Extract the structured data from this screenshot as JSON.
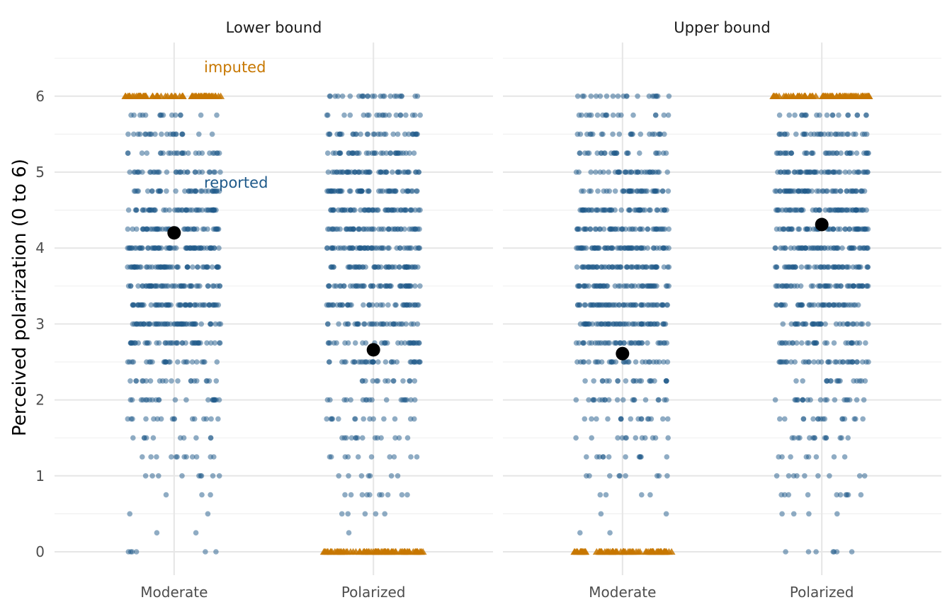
{
  "chart_data": {
    "type": "scatter",
    "ylabel": "Perceived polarization (0 to 6)",
    "xlabel": "",
    "ylim": [
      -0.3,
      6.55
    ],
    "y_ticks": [
      0,
      1,
      2,
      3,
      4,
      5,
      6
    ],
    "categories": [
      "Moderate",
      "Polarized"
    ],
    "grid": true,
    "legend": "none",
    "colors": {
      "reported": "#1f5a8a",
      "imputed": "#c77700",
      "mean": "#000000"
    },
    "annotations": [
      {
        "text": "imputed",
        "panel": 0,
        "x": 1.15,
        "y": 6.38,
        "color": "#c77700"
      },
      {
        "text": "reported",
        "panel": 0,
        "x": 1.15,
        "y": 4.86,
        "color": "#1f5a8a"
      }
    ],
    "panels": [
      {
        "title": "Lower bound",
        "groups": [
          {
            "category": "Moderate",
            "mean": 4.2,
            "imputed_at": 6,
            "imputed_count": 70,
            "reported_counts": {
              "0": 6,
              "0.25": 2,
              "0.5": 2,
              "0.75": 3,
              "1": 9,
              "1.25": 12,
              "1.5": 10,
              "1.75": 16,
              "2": 22,
              "2.25": 20,
              "2.5": 25,
              "2.75": 42,
              "3": 55,
              "3.25": 55,
              "3.5": 50,
              "3.75": 58,
              "4": 65,
              "4.25": 48,
              "4.5": 50,
              "4.75": 35,
              "5": 32,
              "5.25": 26,
              "5.5": 22,
              "5.75": 15
            }
          },
          {
            "category": "Polarized",
            "mean": 2.66,
            "imputed_at": 0,
            "imputed_count": 80,
            "reported_counts": {
              "0.25": 1,
              "0.5": 5,
              "0.75": 10,
              "1": 7,
              "1.25": 10,
              "1.5": 14,
              "1.75": 14,
              "2": 18,
              "2.25": 14,
              "2.5": 35,
              "2.75": 30,
              "3": 35,
              "3.25": 40,
              "3.5": 48,
              "3.75": 52,
              "4": 55,
              "4.25": 50,
              "4.5": 55,
              "4.75": 55,
              "5": 50,
              "5.25": 38,
              "5.5": 32,
              "5.75": 20,
              "6": 25
            }
          }
        ]
      },
      {
        "title": "Upper bound",
        "groups": [
          {
            "category": "Moderate",
            "mean": 2.61,
            "imputed_at": 0,
            "imputed_count": 80,
            "reported_counts": {
              "0.25": 2,
              "0.5": 2,
              "0.75": 4,
              "1": 9,
              "1.25": 12,
              "1.5": 12,
              "1.75": 16,
              "2": 20,
              "2.25": 22,
              "2.5": 30,
              "2.75": 40,
              "3": 55,
              "3.25": 55,
              "3.5": 50,
              "3.75": 58,
              "4": 65,
              "4.25": 48,
              "4.5": 50,
              "4.75": 40,
              "5": 35,
              "5.25": 26,
              "5.5": 22,
              "5.75": 18,
              "6": 20
            }
          },
          {
            "category": "Polarized",
            "mean": 4.31,
            "imputed_at": 6,
            "imputed_count": 75,
            "reported_counts": {
              "0": 7,
              "0.5": 4,
              "0.75": 10,
              "1": 9,
              "1.25": 8,
              "1.5": 14,
              "1.75": 16,
              "2": 20,
              "2.25": 16,
              "2.5": 35,
              "2.75": 30,
              "3": 35,
              "3.25": 42,
              "3.5": 48,
              "3.75": 52,
              "4": 55,
              "4.25": 50,
              "4.5": 55,
              "4.75": 55,
              "5": 50,
              "5.25": 38,
              "5.5": 32,
              "5.75": 20
            }
          }
        ]
      }
    ]
  }
}
